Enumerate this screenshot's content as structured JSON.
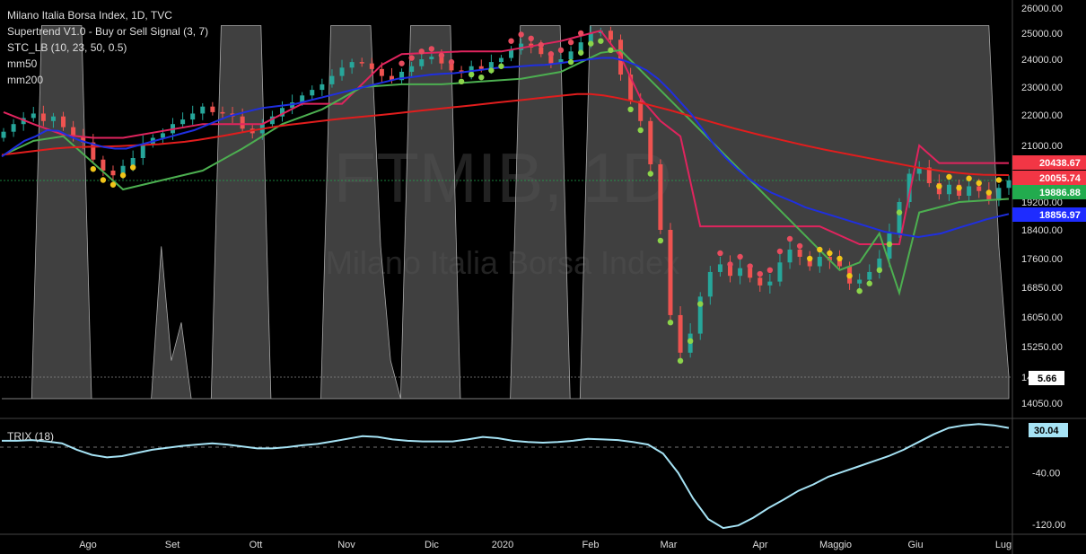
{
  "chart_data": {
    "type": "candlestick",
    "symbol_watermark": "FTMIB, 1D",
    "name_watermark": "Milano Italia Borsa Index",
    "legend": [
      "Milano Italia Borsa Index, 1D, TVC",
      "Supertrend V1.0 - Buy or Sell Signal (3, 7)",
      "STC_LB (10, 23, 50, 0.5)",
      "mm50",
      "mm200"
    ],
    "price_axis": {
      "ticks": [
        26000,
        25000,
        24000,
        23000,
        22000,
        21000,
        19200,
        18400,
        17600,
        16850,
        16050,
        15250,
        14500,
        14050
      ],
      "tick_labels": [
        "26000.00",
        "25000.00",
        "24000.00",
        "23000.00",
        "22000.00",
        "21000.00",
        "19200.00",
        "18400.00",
        "17600.00",
        "16850.00",
        "16050.00",
        "15250.00",
        "14500.00",
        "14050.00"
      ]
    },
    "x_axis": {
      "labels": [
        "Ago",
        "Set",
        "Ott",
        "Nov",
        "Dic",
        "2020",
        "Feb",
        "Mar",
        "Apr",
        "Maggio",
        "Giu",
        "Lug"
      ]
    },
    "price_tags": [
      {
        "label": "20438.67",
        "value": 20438.67,
        "color": "#f23645"
      },
      {
        "label": "20055.74",
        "value": 20055.74,
        "color": "#f23645"
      },
      {
        "label": "19886.88",
        "value": 19886.88,
        "color": "#22ab4e"
      },
      {
        "label": "18856.97",
        "value": 18856.97,
        "color": "#1e2cff"
      }
    ],
    "stc_tag": {
      "label": "5.66",
      "value": 5.66
    },
    "trix": {
      "name": "TRIX (18)",
      "last_label": "30.04",
      "ticks": [
        -40,
        -120
      ],
      "tick_labels": [
        "-40.00",
        "-120.00"
      ],
      "series": [
        10,
        10,
        11,
        9,
        6,
        -4,
        -12,
        -16,
        -14,
        -9,
        -4,
        -1,
        2,
        4,
        6,
        4,
        1,
        -2,
        -2,
        0,
        3,
        5,
        9,
        13,
        17,
        16,
        12,
        10,
        9,
        9,
        9,
        12,
        16,
        14,
        10,
        8,
        7,
        8,
        10,
        13,
        12,
        11,
        8,
        4,
        -10,
        -40,
        -80,
        -112,
        -126,
        -122,
        -110,
        -95,
        -82,
        -68,
        -58,
        -46,
        -38,
        -30,
        -22,
        -14,
        -4,
        8,
        20,
        30,
        34,
        36,
        34,
        30
      ]
    },
    "series": [
      {
        "name": "Milano Italia Borsa Index"
      },
      {
        "name": "Supertrend V1.0 - Buy or Sell Signal (3, 7)"
      },
      {
        "name": "STC_LB (10, 23, 50, 0.5)"
      },
      {
        "name": "mm50"
      },
      {
        "name": "mm200"
      }
    ],
    "closes": [
      21450,
      21700,
      21900,
      22050,
      21800,
      21950,
      21600,
      21300,
      21100,
      20550,
      20200,
      20050,
      20350,
      20600,
      21050,
      21250,
      21400,
      21700,
      21850,
      22050,
      22300,
      22100,
      22050,
      21950,
      21550,
      21400,
      21700,
      21950,
      22250,
      22450,
      22700,
      22900,
      23100,
      23400,
      23700,
      23900,
      23850,
      23650,
      23400,
      23250,
      23550,
      23750,
      24000,
      24100,
      23850,
      23600,
      23500,
      23750,
      23650,
      23900,
      24050,
      24350,
      24600,
      24450,
      24200,
      23850,
      24000,
      24300,
      24650,
      25000,
      25100,
      24750,
      23450,
      22500,
      21800,
      20400,
      18400,
      16100,
      15100,
      15600,
      16600,
      17250,
      17450,
      17150,
      17350,
      17100,
      16900,
      17000,
      17500,
      17850,
      17650,
      17400,
      17650,
      17550,
      17400,
      16950,
      17050,
      17250,
      17600,
      18300,
      19200,
      20100,
      20300,
      19800,
      19450,
      19750,
      19400,
      19700,
      19550,
      19250,
      19650,
      19887
    ],
    "mm50": [
      20650,
      20900,
      21150,
      21300,
      21500,
      21480,
      21300,
      21150,
      21050,
      20950,
      20900,
      20900,
      21000,
      21100,
      21200,
      21300,
      21400,
      21500,
      21650,
      21800,
      21950,
      22050,
      22150,
      22250,
      22300,
      22350,
      22400,
      22500,
      22600,
      22700,
      22800,
      22900,
      23000,
      23100,
      23200,
      23300,
      23350,
      23400,
      23450,
      23480,
      23500,
      23550,
      23600,
      23650,
      23700,
      23720,
      23750,
      23780,
      23800,
      23850,
      23900,
      23950,
      24000,
      24050,
      24050,
      23950,
      23800,
      23600,
      23300,
      22900,
      22450,
      22000,
      21500,
      21000,
      20600,
      20250,
      19950,
      19700,
      19500,
      19350,
      19200,
      19050,
      18950,
      18850,
      18750,
      18650,
      18550,
      18450,
      18350,
      18300,
      18250,
      18200,
      18250,
      18300,
      18400,
      18500,
      18600,
      18700,
      18780,
      18857
    ],
    "mm200": [
      20700,
      20750,
      20800,
      20850,
      20900,
      20930,
      20950,
      20960,
      20970,
      20980,
      21000,
      21020,
      21040,
      21080,
      21120,
      21180,
      21250,
      21320,
      21400,
      21480,
      21550,
      21620,
      21680,
      21730,
      21780,
      21830,
      21880,
      21920,
      21960,
      22000,
      22050,
      22100,
      22150,
      22200,
      22250,
      22300,
      22350,
      22400,
      22450,
      22500,
      22550,
      22600,
      22650,
      22700,
      22750,
      22750,
      22700,
      22620,
      22520,
      22420,
      22300,
      22180,
      22050,
      21920,
      21800,
      21680,
      21560,
      21450,
      21340,
      21240,
      21140,
      21040,
      20950,
      20860,
      20780,
      20700,
      20620,
      20540,
      20460,
      20380,
      20300,
      20240,
      20180,
      20130,
      20090,
      20070,
      20060,
      20056
    ],
    "supertrend_upper": [
      [
        0,
        22100
      ],
      [
        3,
        21700
      ],
      [
        6,
        21350
      ],
      [
        9,
        21250
      ],
      [
        12,
        21250
      ],
      [
        20,
        21700
      ],
      [
        26,
        21700
      ],
      [
        30,
        22400
      ],
      [
        34,
        22400
      ],
      [
        38,
        23800
      ],
      [
        40,
        24200
      ],
      [
        46,
        24300
      ],
      [
        50,
        24300
      ],
      [
        56,
        24700
      ],
      [
        59,
        25000
      ],
      [
        60,
        25100
      ],
      [
        62,
        24100
      ],
      [
        64,
        22600
      ],
      [
        66,
        21800
      ],
      [
        68,
        21300
      ],
      [
        70,
        18500
      ],
      [
        76,
        18500
      ],
      [
        82,
        18500
      ],
      [
        86,
        18000
      ],
      [
        90,
        18000
      ],
      [
        92,
        21000
      ],
      [
        94,
        20440
      ],
      [
        101,
        20440
      ]
    ],
    "supertrend_lower": [
      [
        0,
        20700
      ],
      [
        3,
        21150
      ],
      [
        6,
        21300
      ],
      [
        12,
        19600
      ],
      [
        16,
        19900
      ],
      [
        20,
        20200
      ],
      [
        24,
        20900
      ],
      [
        28,
        21700
      ],
      [
        32,
        22200
      ],
      [
        36,
        23000
      ],
      [
        40,
        23100
      ],
      [
        44,
        23100
      ],
      [
        48,
        23200
      ],
      [
        52,
        23300
      ],
      [
        56,
        23550
      ],
      [
        60,
        24250
      ],
      [
        62,
        24350
      ],
      [
        84,
        17300
      ],
      [
        86,
        17500
      ],
      [
        88,
        18300
      ],
      [
        90,
        16700
      ],
      [
        92,
        18900
      ],
      [
        96,
        19200
      ],
      [
        101,
        19300
      ]
    ],
    "stc_series": [
      0,
      0,
      0,
      0,
      98,
      98,
      98,
      98,
      98,
      0,
      0,
      0,
      0,
      0,
      0,
      0,
      40,
      10,
      20,
      0,
      0,
      0,
      98,
      98,
      98,
      98,
      98,
      0,
      0,
      0,
      0,
      0,
      0,
      98,
      98,
      98,
      98,
      98,
      40,
      10,
      0,
      98,
      98,
      98,
      98,
      98,
      0,
      0,
      0,
      0,
      0,
      0,
      98,
      98,
      98,
      98,
      98,
      0,
      0,
      98,
      98,
      98,
      98,
      98,
      98,
      98,
      98,
      98,
      98,
      98,
      98,
      98,
      98,
      98,
      98,
      98,
      98,
      98,
      98,
      98,
      98,
      98,
      98,
      98,
      98,
      98,
      98,
      98,
      98,
      98,
      98,
      98,
      98,
      98,
      98,
      98,
      98,
      98,
      98,
      98,
      40,
      6
    ]
  }
}
